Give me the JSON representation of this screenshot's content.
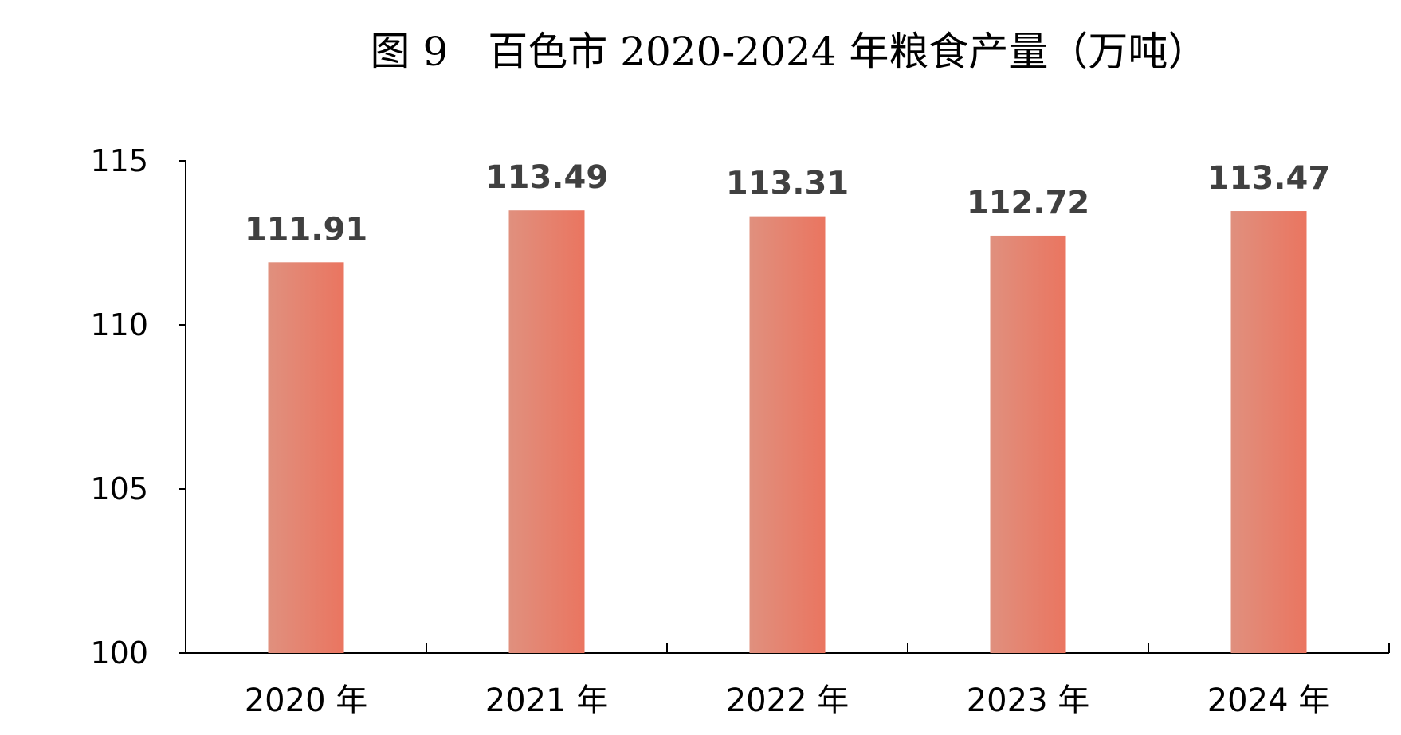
{
  "chart_data": {
    "type": "bar",
    "title": "图 9　百色市 2020-2024 年粮食产量（万吨）",
    "categories": [
      "2020 年",
      "2021 年",
      "2022 年",
      "2023 年",
      "2024 年"
    ],
    "values": [
      111.91,
      113.49,
      113.31,
      112.72,
      113.47
    ],
    "value_labels": [
      "111.91",
      "113.49",
      "113.31",
      "112.72",
      "113.47"
    ],
    "ylim": [
      100,
      115
    ],
    "yticks": [
      100,
      105,
      110,
      115
    ],
    "ytick_labels": [
      "100",
      "105",
      "110",
      "115"
    ],
    "xlabel": "",
    "ylabel": "",
    "grid": false,
    "legend": "none",
    "colors": {
      "bar_left": "#E0907E",
      "bar_right": "#EA7560",
      "axis": "#000000"
    }
  }
}
